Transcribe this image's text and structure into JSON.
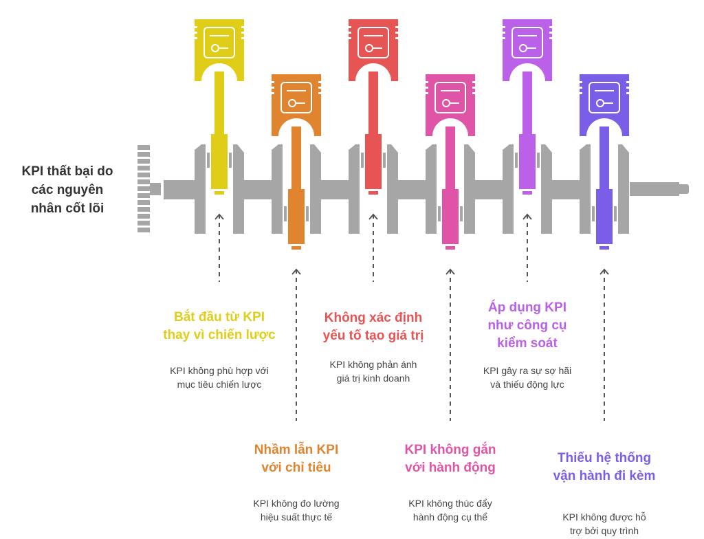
{
  "title": "KPI thất bại do các nguyên nhân cốt lõi",
  "title_lines": [
    "KPI thất bại do",
    "các nguyên",
    "nhân cốt lõi"
  ],
  "causes": [
    {
      "title_lines": [
        "Bắt đầu từ KPI",
        "thay vì chiến lược"
      ],
      "desc_lines": [
        "KPI không phù hợp với",
        "mục tiêu chiến lược"
      ],
      "color": "#e0cd18",
      "icon": "strategy-flowchart-icon"
    },
    {
      "title_lines": [
        "Nhầm lẫn KPI",
        "với chỉ tiêu"
      ],
      "desc_lines": [
        "KPI không đo lường",
        "hiệu suất thực tế"
      ],
      "color": "#e08430",
      "icon": "chart-analysis-icon"
    },
    {
      "title_lines": [
        "Không xác định",
        "yếu tố tạo giá trị"
      ],
      "desc_lines": [
        "KPI không phản ánh",
        "giá trị kinh doanh"
      ],
      "color": "#e65454",
      "icon": "gem-gear-icon"
    },
    {
      "title_lines": [
        "KPI không gắn",
        "với hành động"
      ],
      "desc_lines": [
        "KPI không thúc đẩy",
        "hành động cụ thể"
      ],
      "color": "#e054a8",
      "icon": "runner-flag-icon"
    },
    {
      "title_lines": [
        "Áp dụng KPI",
        "như công cụ",
        "kiểm soát"
      ],
      "desc_lines": [
        "KPI gây ra sự sợ hãi",
        "và thiếu động lực"
      ],
      "color": "#bb60e8",
      "icon": "control-gears-icon"
    },
    {
      "title_lines": [
        "Thiếu hệ thống",
        "vận hành đi kèm"
      ],
      "desc_lines": [
        "KPI không được hỗ",
        "trợ bởi quy trình"
      ],
      "color": "#7a5ee8",
      "icon": "broken-link-icon"
    }
  ]
}
